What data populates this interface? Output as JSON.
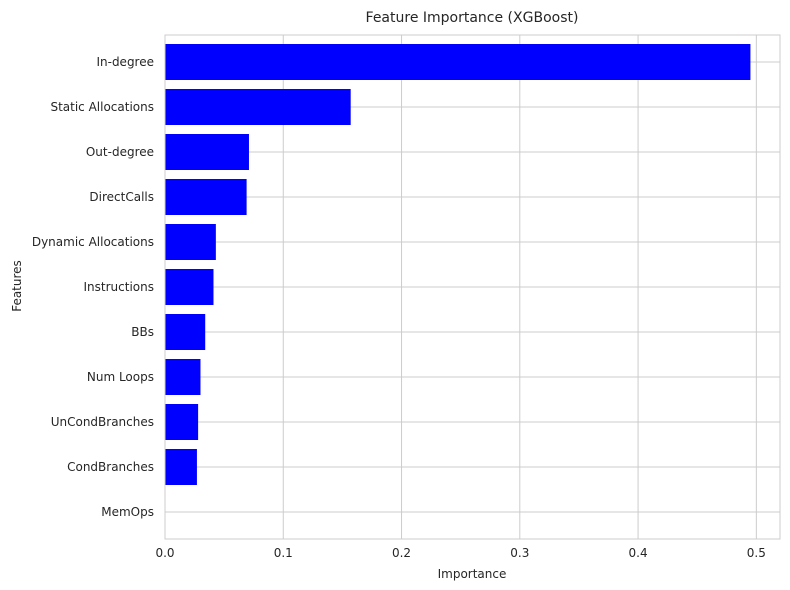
{
  "chart_data": {
    "type": "bar",
    "orientation": "horizontal",
    "title": "Feature Importance (XGBoost)",
    "xlabel": "Importance",
    "ylabel": "Features",
    "categories": [
      "In-degree",
      "Static Allocations",
      "Out-degree",
      "DirectCalls",
      "Dynamic Allocations",
      "Instructions",
      "BBs",
      "Num Loops",
      "UnCondBranches",
      "CondBranches",
      "MemOps"
    ],
    "values": [
      0.495,
      0.157,
      0.071,
      0.069,
      0.043,
      0.041,
      0.034,
      0.03,
      0.028,
      0.027,
      0.0
    ],
    "xlim": [
      0.0,
      0.52
    ],
    "xticks": [
      0.0,
      0.1,
      0.2,
      0.3,
      0.4,
      0.5
    ],
    "xtick_labels": [
      "0.0",
      "0.1",
      "0.2",
      "0.3",
      "0.4",
      "0.5"
    ],
    "grid": true,
    "bar_color": "#0000ff"
  }
}
